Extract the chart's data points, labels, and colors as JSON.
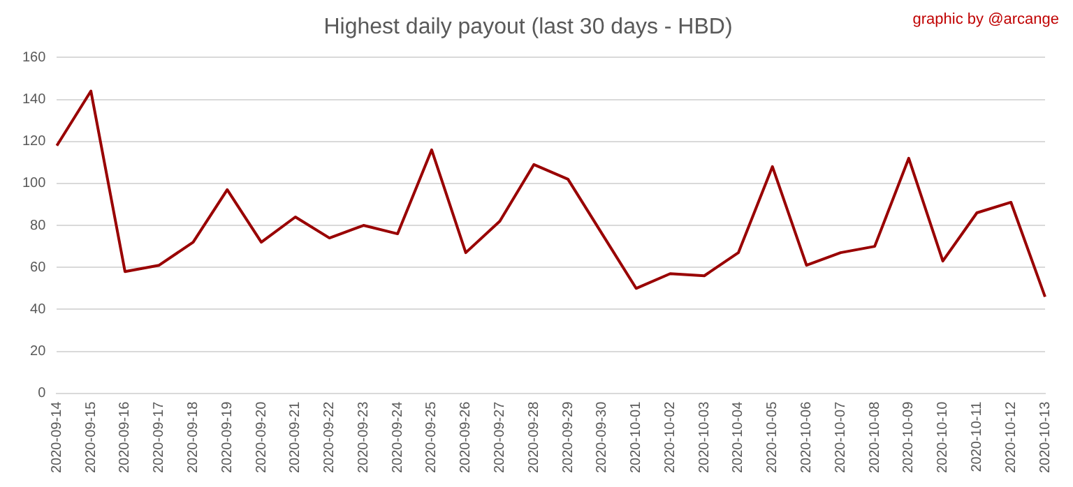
{
  "chart_data": {
    "type": "line",
    "title": "Highest daily payout (last 30 days - HBD)",
    "annotations": [
      "graphic by @arcange"
    ],
    "categories": [
      "2020-09-14",
      "2020-09-15",
      "2020-09-16",
      "2020-09-17",
      "2020-09-18",
      "2020-09-19",
      "2020-09-20",
      "2020-09-21",
      "2020-09-22",
      "2020-09-23",
      "2020-09-24",
      "2020-09-25",
      "2020-09-26",
      "2020-09-27",
      "2020-09-28",
      "2020-09-29",
      "2020-09-30",
      "2020-10-01",
      "2020-10-02",
      "2020-10-03",
      "2020-10-04",
      "2020-10-05",
      "2020-10-06",
      "2020-10-07",
      "2020-10-08",
      "2020-10-09",
      "2020-10-10",
      "2020-10-11",
      "2020-10-12",
      "2020-10-13"
    ],
    "series": [
      {
        "color": "#990000",
        "values": [
          118,
          144,
          58,
          61,
          72,
          97,
          72,
          84,
          74,
          80,
          76,
          116,
          67,
          82,
          109,
          102,
          76,
          50,
          57,
          56,
          67,
          108,
          61,
          67,
          70,
          112,
          63,
          86,
          91,
          46
        ]
      }
    ],
    "ylim": [
      0,
      160
    ],
    "yticks": [
      0,
      20,
      40,
      60,
      80,
      100,
      120,
      140,
      160
    ],
    "grid": "y",
    "legend": false,
    "marker": "none",
    "line_style": "solid"
  }
}
